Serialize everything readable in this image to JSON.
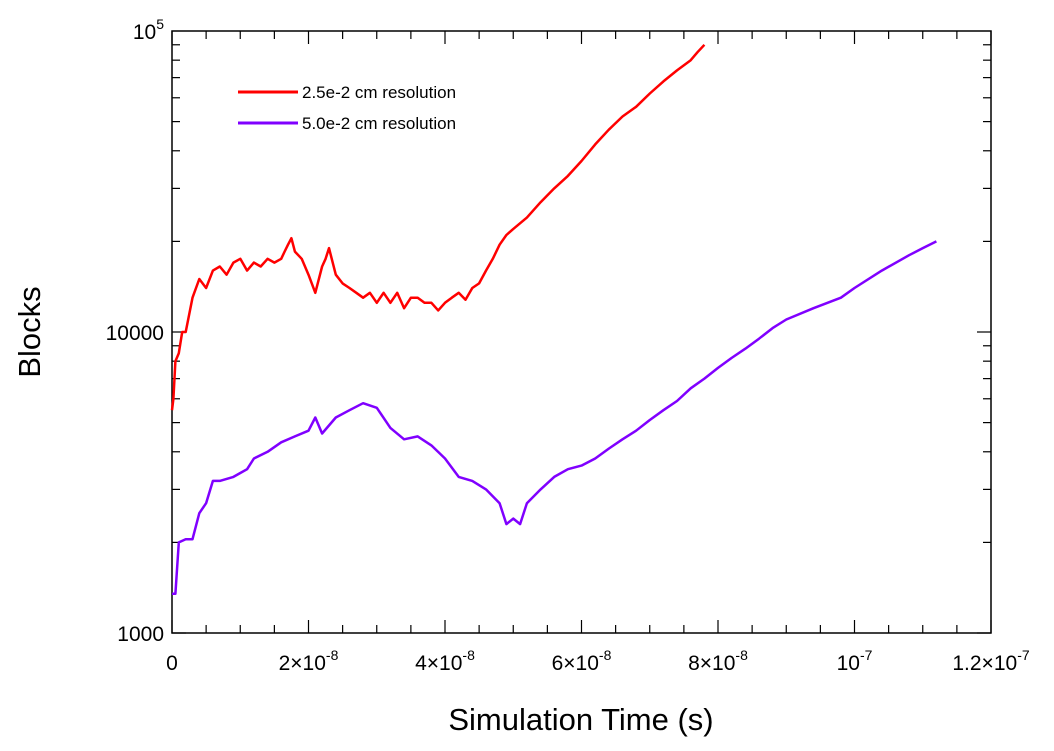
{
  "chart_data": {
    "type": "line",
    "xlabel": "Simulation Time (s)",
    "ylabel": "Blocks",
    "xlim": [
      0,
      1.2e-07
    ],
    "ylim": [
      1000,
      100000
    ],
    "yscale": "log",
    "grid": false,
    "legend_position": "top-left",
    "x_ticks": [
      {
        "value": 0,
        "label": "0"
      },
      {
        "value": 2e-08,
        "label": "2×10",
        "exp": "-8"
      },
      {
        "value": 4e-08,
        "label": "4×10",
        "exp": "-8"
      },
      {
        "value": 6e-08,
        "label": "6×10",
        "exp": "-8"
      },
      {
        "value": 8e-08,
        "label": "8×10",
        "exp": "-8"
      },
      {
        "value": 1e-07,
        "label": "10",
        "exp": "-7"
      },
      {
        "value": 1.2e-07,
        "label": "1.2×10",
        "exp": "-7"
      }
    ],
    "y_ticks": [
      {
        "value": 1000,
        "label": "1000"
      },
      {
        "value": 10000,
        "label": "10000"
      },
      {
        "value": 100000,
        "label": "10",
        "exp": "5"
      }
    ],
    "series": [
      {
        "name": "2.5e-2 cm resolution",
        "color": "#ff0000",
        "x": [
          0,
          2e-10,
          5e-10,
          1e-09,
          1.5e-09,
          2e-09,
          3e-09,
          4e-09,
          5e-09,
          6e-09,
          7e-09,
          8e-09,
          9e-09,
          1e-08,
          1.1e-08,
          1.2e-08,
          1.3e-08,
          1.4e-08,
          1.5e-08,
          1.6e-08,
          1.65e-08,
          1.7e-08,
          1.75e-08,
          1.8e-08,
          1.9e-08,
          2e-08,
          2.1e-08,
          2.2e-08,
          2.25e-08,
          2.3e-08,
          2.4e-08,
          2.5e-08,
          2.6e-08,
          2.7e-08,
          2.8e-08,
          2.9e-08,
          3e-08,
          3.1e-08,
          3.2e-08,
          3.3e-08,
          3.4e-08,
          3.5e-08,
          3.6e-08,
          3.7e-08,
          3.8e-08,
          3.9e-08,
          4e-08,
          4.1e-08,
          4.2e-08,
          4.3e-08,
          4.4e-08,
          4.5e-08,
          4.6e-08,
          4.7e-08,
          4.8e-08,
          4.9e-08,
          5e-08,
          5.2e-08,
          5.4e-08,
          5.6e-08,
          5.8e-08,
          6e-08,
          6.2e-08,
          6.4e-08,
          6.6e-08,
          6.8e-08,
          7e-08,
          7.2e-08,
          7.4e-08,
          7.6e-08,
          7.7e-08,
          7.8e-08
        ],
        "values": [
          5500,
          6000,
          8000,
          8500,
          10000,
          10000,
          13000,
          15000,
          14000,
          16000,
          16500,
          15500,
          17000,
          17500,
          16000,
          17000,
          16500,
          17500,
          17000,
          17500,
          18500,
          19500,
          20500,
          18500,
          17500,
          15500,
          13500,
          16500,
          17500,
          19000,
          15500,
          14500,
          14000,
          13500,
          13000,
          13500,
          12500,
          13500,
          12500,
          13500,
          12000,
          13000,
          13000,
          12500,
          12500,
          11800,
          12500,
          13000,
          13500,
          12800,
          14000,
          14500,
          16000,
          17500,
          19500,
          21000,
          22000,
          24000,
          27000,
          30000,
          33000,
          37000,
          42000,
          47000,
          52000,
          56000,
          62000,
          68000,
          74000,
          80000,
          85000,
          90000
        ]
      },
      {
        "name": "5.0e-2 cm resolution",
        "color": "#8000ff",
        "x": [
          0,
          5e-10,
          1e-09,
          2e-09,
          3e-09,
          4e-09,
          5e-09,
          6e-09,
          7e-09,
          8e-09,
          9e-09,
          1e-08,
          1.1e-08,
          1.2e-08,
          1.4e-08,
          1.6e-08,
          1.8e-08,
          2e-08,
          2.1e-08,
          2.2e-08,
          2.4e-08,
          2.6e-08,
          2.8e-08,
          3e-08,
          3.2e-08,
          3.4e-08,
          3.6e-08,
          3.8e-08,
          4e-08,
          4.2e-08,
          4.4e-08,
          4.6e-08,
          4.8e-08,
          4.9e-08,
          5e-08,
          5.1e-08,
          5.2e-08,
          5.4e-08,
          5.6e-08,
          5.8e-08,
          6e-08,
          6.2e-08,
          6.4e-08,
          6.6e-08,
          6.8e-08,
          7e-08,
          7.2e-08,
          7.4e-08,
          7.6e-08,
          7.8e-08,
          8e-08,
          8.2e-08,
          8.4e-08,
          8.6e-08,
          8.8e-08,
          9e-08,
          9.4e-08,
          9.8e-08,
          1e-07,
          1.04e-07,
          1.08e-07,
          1.1e-07,
          1.12e-07
        ],
        "values": [
          1350,
          1350,
          2000,
          2050,
          2050,
          2500,
          2700,
          3200,
          3200,
          3250,
          3300,
          3400,
          3500,
          3800,
          4000,
          4300,
          4500,
          4700,
          5200,
          4600,
          5200,
          5500,
          5800,
          5600,
          4800,
          4400,
          4500,
          4200,
          3800,
          3300,
          3200,
          3000,
          2700,
          2300,
          2400,
          2300,
          2700,
          3000,
          3300,
          3500,
          3600,
          3800,
          4100,
          4400,
          4700,
          5100,
          5500,
          5900,
          6500,
          7000,
          7600,
          8200,
          8800,
          9500,
          10300,
          11000,
          12000,
          13000,
          14000,
          16000,
          18000,
          19000,
          20000
        ]
      }
    ]
  }
}
